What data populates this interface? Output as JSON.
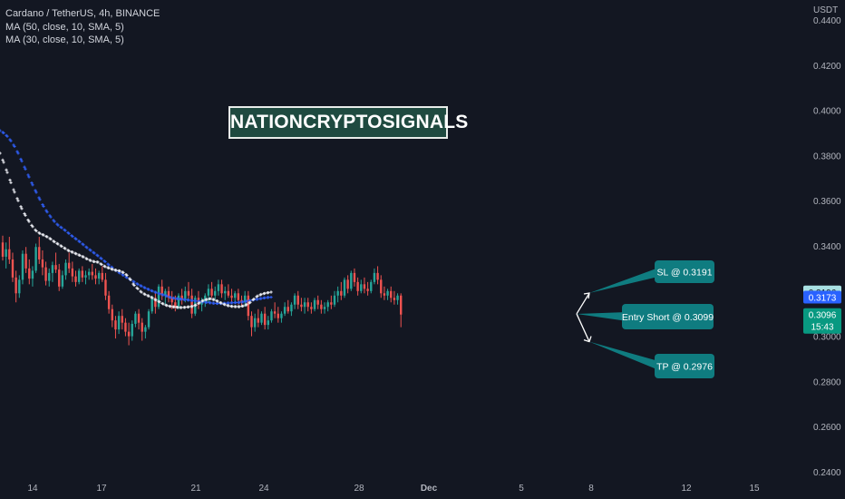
{
  "header": {
    "symbol_line": "Cardano / TetherUS, 4h, BINANCE",
    "indicators": [
      "MA (50, close, 10, SMA, 5)",
      "MA (30, close, 10, SMA, 5)"
    ],
    "unit": "USDT"
  },
  "watermark": "NATIONCRYPTOSIGNALS",
  "chart_data": {
    "type": "candlestick",
    "ylim": [
      0.24,
      0.446
    ],
    "y_ticks": [
      "0.4400",
      "0.4200",
      "0.4000",
      "0.3800",
      "0.3600",
      "0.3400",
      "0.3000",
      "0.2800",
      "0.2600",
      "0.2400"
    ],
    "x_ticks": [
      "14",
      "17",
      "21",
      "24",
      "28",
      "Dec",
      "5",
      "8",
      "12",
      "15"
    ],
    "price_tags": [
      {
        "label": "0.3196",
        "value": 0.3196,
        "bg": "#a8e0e3",
        "fg": "#131722"
      },
      {
        "label": "0.3173",
        "value": 0.3173,
        "bg": "#2962ff",
        "fg": "#ffffff"
      },
      {
        "label": "0.3096",
        "sub": "15:43",
        "value": 0.3096,
        "bg": "#089981",
        "fg": "#ffffff"
      }
    ],
    "candles": [
      [
        0.3415,
        0.3445,
        0.3335,
        0.3352
      ],
      [
        0.3352,
        0.3415,
        0.33,
        0.3385
      ],
      [
        0.3385,
        0.344,
        0.332,
        0.334
      ],
      [
        0.334,
        0.337,
        0.324,
        0.326
      ],
      [
        0.326,
        0.329,
        0.315,
        0.319
      ],
      [
        0.319,
        0.327,
        0.317,
        0.325
      ],
      [
        0.325,
        0.338,
        0.323,
        0.3365
      ],
      [
        0.3365,
        0.3395,
        0.328,
        0.33
      ],
      [
        0.33,
        0.334,
        0.323,
        0.3255
      ],
      [
        0.3255,
        0.331,
        0.322,
        0.329
      ],
      [
        0.329,
        0.341,
        0.328,
        0.3395
      ],
      [
        0.3395,
        0.344,
        0.332,
        0.334
      ],
      [
        0.334,
        0.338,
        0.327,
        0.3305
      ],
      [
        0.3305,
        0.333,
        0.3225,
        0.3245
      ],
      [
        0.3245,
        0.33,
        0.322,
        0.328
      ],
      [
        0.328,
        0.333,
        0.324,
        0.3315
      ],
      [
        0.3315,
        0.337,
        0.328,
        0.3295
      ],
      [
        0.3295,
        0.332,
        0.32,
        0.322
      ],
      [
        0.322,
        0.329,
        0.321,
        0.327
      ],
      [
        0.327,
        0.334,
        0.325,
        0.3325
      ],
      [
        0.3325,
        0.337,
        0.328,
        0.33
      ],
      [
        0.33,
        0.333,
        0.324,
        0.3265
      ],
      [
        0.3265,
        0.329,
        0.322,
        0.324
      ],
      [
        0.324,
        0.33,
        0.323,
        0.329
      ],
      [
        0.329,
        0.331,
        0.324,
        0.326
      ],
      [
        0.326,
        0.329,
        0.323,
        0.327
      ],
      [
        0.327,
        0.33,
        0.325,
        0.3285
      ],
      [
        0.3285,
        0.332,
        0.325,
        0.327
      ],
      [
        0.327,
        0.33,
        0.323,
        0.3255
      ],
      [
        0.3255,
        0.329,
        0.323,
        0.328
      ],
      [
        0.328,
        0.331,
        0.324,
        0.325
      ],
      [
        0.325,
        0.328,
        0.316,
        0.318
      ],
      [
        0.318,
        0.32,
        0.31,
        0.312
      ],
      [
        0.312,
        0.314,
        0.304,
        0.307
      ],
      [
        0.307,
        0.309,
        0.299,
        0.303
      ],
      [
        0.303,
        0.311,
        0.301,
        0.309
      ],
      [
        0.309,
        0.312,
        0.303,
        0.306
      ],
      [
        0.306,
        0.308,
        0.3,
        0.302
      ],
      [
        0.302,
        0.306,
        0.296,
        0.3
      ],
      [
        0.3,
        0.307,
        0.298,
        0.3055
      ],
      [
        0.3055,
        0.311,
        0.304,
        0.31
      ],
      [
        0.31,
        0.312,
        0.303,
        0.306
      ],
      [
        0.306,
        0.308,
        0.298,
        0.302
      ],
      [
        0.302,
        0.305,
        0.299,
        0.304
      ],
      [
        0.304,
        0.312,
        0.303,
        0.311
      ],
      [
        0.311,
        0.318,
        0.31,
        0.317
      ],
      [
        0.317,
        0.319,
        0.31,
        0.313
      ],
      [
        0.313,
        0.323,
        0.312,
        0.322
      ],
      [
        0.322,
        0.325,
        0.316,
        0.318
      ],
      [
        0.318,
        0.321,
        0.314,
        0.32
      ],
      [
        0.32,
        0.322,
        0.315,
        0.317
      ],
      [
        0.317,
        0.32,
        0.312,
        0.315
      ],
      [
        0.315,
        0.318,
        0.311,
        0.313
      ],
      [
        0.313,
        0.319,
        0.312,
        0.318
      ],
      [
        0.318,
        0.321,
        0.314,
        0.316
      ],
      [
        0.316,
        0.322,
        0.315,
        0.32
      ],
      [
        0.32,
        0.324,
        0.316,
        0.318
      ],
      [
        0.318,
        0.321,
        0.308,
        0.31
      ],
      [
        0.31,
        0.318,
        0.309,
        0.317
      ],
      [
        0.317,
        0.32,
        0.312,
        0.314
      ],
      [
        0.314,
        0.317,
        0.311,
        0.315
      ],
      [
        0.315,
        0.319,
        0.313,
        0.318
      ],
      [
        0.318,
        0.323,
        0.315,
        0.321
      ],
      [
        0.321,
        0.324,
        0.317,
        0.318
      ],
      [
        0.318,
        0.322,
        0.316,
        0.32
      ],
      [
        0.32,
        0.325,
        0.318,
        0.323
      ],
      [
        0.323,
        0.325,
        0.317,
        0.319
      ],
      [
        0.319,
        0.322,
        0.316,
        0.32
      ],
      [
        0.32,
        0.323,
        0.317,
        0.318
      ],
      [
        0.318,
        0.321,
        0.315,
        0.317
      ],
      [
        0.317,
        0.32,
        0.315,
        0.319
      ],
      [
        0.319,
        0.321,
        0.314,
        0.316
      ],
      [
        0.316,
        0.318,
        0.313,
        0.315
      ],
      [
        0.315,
        0.32,
        0.313,
        0.318
      ],
      [
        0.318,
        0.32,
        0.307,
        0.309
      ],
      [
        0.309,
        0.311,
        0.3,
        0.304
      ],
      [
        0.304,
        0.31,
        0.302,
        0.308
      ],
      [
        0.308,
        0.312,
        0.304,
        0.306
      ],
      [
        0.306,
        0.311,
        0.305,
        0.31
      ],
      [
        0.31,
        0.313,
        0.303,
        0.305
      ],
      [
        0.305,
        0.309,
        0.303,
        0.307
      ],
      [
        0.307,
        0.312,
        0.306,
        0.311
      ],
      [
        0.311,
        0.315,
        0.308,
        0.31
      ],
      [
        0.31,
        0.313,
        0.306,
        0.308
      ],
      [
        0.308,
        0.311,
        0.306,
        0.31
      ],
      [
        0.31,
        0.315,
        0.309,
        0.313
      ],
      [
        0.313,
        0.316,
        0.31,
        0.311
      ],
      [
        0.311,
        0.315,
        0.309,
        0.314
      ],
      [
        0.314,
        0.319,
        0.312,
        0.318
      ],
      [
        0.318,
        0.32,
        0.312,
        0.314
      ],
      [
        0.314,
        0.317,
        0.311,
        0.313
      ],
      [
        0.313,
        0.317,
        0.31,
        0.315
      ],
      [
        0.315,
        0.317,
        0.311,
        0.313
      ],
      [
        0.313,
        0.315,
        0.31,
        0.312
      ],
      [
        0.312,
        0.317,
        0.311,
        0.316
      ],
      [
        0.316,
        0.318,
        0.312,
        0.314
      ],
      [
        0.314,
        0.316,
        0.31,
        0.312
      ],
      [
        0.312,
        0.315,
        0.31,
        0.313
      ],
      [
        0.313,
        0.316,
        0.311,
        0.315
      ],
      [
        0.315,
        0.318,
        0.312,
        0.314
      ],
      [
        0.314,
        0.32,
        0.313,
        0.318
      ],
      [
        0.318,
        0.322,
        0.315,
        0.32
      ],
      [
        0.32,
        0.324,
        0.316,
        0.318
      ],
      [
        0.318,
        0.326,
        0.317,
        0.325
      ],
      [
        0.325,
        0.327,
        0.319,
        0.321
      ],
      [
        0.321,
        0.329,
        0.32,
        0.328
      ],
      [
        0.328,
        0.33,
        0.322,
        0.324
      ],
      [
        0.324,
        0.326,
        0.318,
        0.32
      ],
      [
        0.32,
        0.325,
        0.319,
        0.323
      ],
      [
        0.323,
        0.326,
        0.319,
        0.321
      ],
      [
        0.321,
        0.324,
        0.318,
        0.32
      ],
      [
        0.32,
        0.325,
        0.319,
        0.324
      ],
      [
        0.324,
        0.33,
        0.323,
        0.328
      ],
      [
        0.328,
        0.331,
        0.323,
        0.325
      ],
      [
        0.325,
        0.327,
        0.317,
        0.319
      ],
      [
        0.319,
        0.322,
        0.316,
        0.318
      ],
      [
        0.318,
        0.321,
        0.316,
        0.32
      ],
      [
        0.32,
        0.322,
        0.315,
        0.317
      ],
      [
        0.317,
        0.32,
        0.314,
        0.316
      ],
      [
        0.316,
        0.319,
        0.314,
        0.318
      ],
      [
        0.318,
        0.319,
        0.304,
        0.3096
      ]
    ],
    "ma_white": [
      [
        0,
        0.381
      ],
      [
        4,
        0.377
      ],
      [
        8,
        0.3725
      ],
      [
        12,
        0.368
      ],
      [
        16,
        0.3638
      ],
      [
        20,
        0.36
      ],
      [
        24,
        0.3565
      ],
      [
        28,
        0.3535
      ],
      [
        32,
        0.3508
      ],
      [
        36,
        0.3485
      ],
      [
        40,
        0.3466
      ],
      [
        44,
        0.3455
      ],
      [
        48,
        0.3448
      ],
      [
        52,
        0.344
      ],
      [
        56,
        0.343
      ],
      [
        60,
        0.3418
      ],
      [
        64,
        0.3408
      ],
      [
        68,
        0.3398
      ],
      [
        72,
        0.3388
      ],
      [
        76,
        0.3378
      ],
      [
        80,
        0.3372
      ],
      [
        84,
        0.3365
      ],
      [
        88,
        0.3358
      ],
      [
        92,
        0.3351
      ],
      [
        96,
        0.3342
      ],
      [
        100,
        0.3335
      ],
      [
        104,
        0.333
      ],
      [
        108,
        0.3328
      ],
      [
        112,
        0.3318
      ],
      [
        116,
        0.3308
      ],
      [
        120,
        0.3302
      ],
      [
        124,
        0.3296
      ],
      [
        128,
        0.3292
      ],
      [
        132,
        0.3289
      ],
      [
        136,
        0.3282
      ],
      [
        140,
        0.327
      ],
      [
        144,
        0.325
      ],
      [
        148,
        0.3225
      ],
      [
        152,
        0.321
      ],
      [
        156,
        0.3195
      ],
      [
        160,
        0.3185
      ],
      [
        164,
        0.3178
      ],
      [
        168,
        0.317
      ],
      [
        172,
        0.316
      ],
      [
        176,
        0.3152
      ],
      [
        180,
        0.3143
      ],
      [
        184,
        0.3136
      ],
      [
        188,
        0.3132
      ],
      [
        192,
        0.313
      ],
      [
        196,
        0.3128
      ],
      [
        200,
        0.3127
      ],
      [
        204,
        0.3128
      ],
      [
        208,
        0.313
      ],
      [
        212,
        0.3132
      ],
      [
        216,
        0.3138
      ],
      [
        220,
        0.3148
      ],
      [
        224,
        0.3158
      ],
      [
        228,
        0.3163
      ],
      [
        232,
        0.3166
      ],
      [
        236,
        0.3162
      ],
      [
        240,
        0.3155
      ],
      [
        244,
        0.3147
      ],
      [
        248,
        0.314
      ],
      [
        252,
        0.3135
      ],
      [
        256,
        0.3132
      ],
      [
        260,
        0.3131
      ],
      [
        264,
        0.3131
      ],
      [
        268,
        0.3134
      ],
      [
        272,
        0.314
      ],
      [
        276,
        0.315
      ],
      [
        280,
        0.3165
      ],
      [
        284,
        0.3178
      ],
      [
        288,
        0.3185
      ],
      [
        292,
        0.319
      ],
      [
        296,
        0.3193
      ],
      [
        300,
        0.3196
      ]
    ],
    "ma_blue": [
      [
        0,
        0.391
      ],
      [
        4,
        0.39
      ],
      [
        8,
        0.3885
      ],
      [
        12,
        0.3865
      ],
      [
        16,
        0.384
      ],
      [
        20,
        0.381
      ],
      [
        24,
        0.3775
      ],
      [
        28,
        0.374
      ],
      [
        32,
        0.3705
      ],
      [
        36,
        0.367
      ],
      [
        40,
        0.3637
      ],
      [
        44,
        0.3605
      ],
      [
        48,
        0.3575
      ],
      [
        52,
        0.355
      ],
      [
        56,
        0.3528
      ],
      [
        60,
        0.3508
      ],
      [
        64,
        0.3492
      ],
      [
        68,
        0.348
      ],
      [
        72,
        0.3468
      ],
      [
        76,
        0.3455
      ],
      [
        80,
        0.3442
      ],
      [
        84,
        0.343
      ],
      [
        88,
        0.3418
      ],
      [
        92,
        0.3405
      ],
      [
        96,
        0.3392
      ],
      [
        100,
        0.338
      ],
      [
        104,
        0.3368
      ],
      [
        108,
        0.3356
      ],
      [
        112,
        0.3343
      ],
      [
        116,
        0.333
      ],
      [
        120,
        0.3316
      ],
      [
        124,
        0.3303
      ],
      [
        128,
        0.329
      ],
      [
        132,
        0.328
      ],
      [
        136,
        0.327
      ],
      [
        140,
        0.326
      ],
      [
        144,
        0.325
      ],
      [
        148,
        0.324
      ],
      [
        152,
        0.323
      ],
      [
        156,
        0.3222
      ],
      [
        160,
        0.3214
      ],
      [
        164,
        0.3207
      ],
      [
        168,
        0.32
      ],
      [
        172,
        0.3194
      ],
      [
        176,
        0.3188
      ],
      [
        180,
        0.3183
      ],
      [
        184,
        0.3178
      ],
      [
        188,
        0.3172
      ],
      [
        192,
        0.3168
      ],
      [
        196,
        0.3166
      ],
      [
        200,
        0.3164
      ],
      [
        204,
        0.3162
      ],
      [
        208,
        0.316
      ],
      [
        212,
        0.3158
      ],
      [
        216,
        0.3156
      ],
      [
        220,
        0.3154
      ],
      [
        224,
        0.3152
      ],
      [
        228,
        0.315
      ],
      [
        232,
        0.3148
      ],
      [
        236,
        0.3146
      ],
      [
        240,
        0.3145
      ],
      [
        244,
        0.3145
      ],
      [
        248,
        0.3146
      ],
      [
        252,
        0.3147
      ],
      [
        256,
        0.3148
      ],
      [
        260,
        0.3149
      ],
      [
        264,
        0.315
      ],
      [
        268,
        0.3152
      ],
      [
        272,
        0.3155
      ],
      [
        276,
        0.3158
      ],
      [
        280,
        0.3161
      ],
      [
        284,
        0.3164
      ],
      [
        288,
        0.3167
      ],
      [
        292,
        0.317
      ],
      [
        296,
        0.3172
      ],
      [
        300,
        0.3173
      ]
    ],
    "annotations": [
      {
        "label": "SL @ 0.3191",
        "value": 0.3191
      },
      {
        "label": "Entry Short @ 0.3099",
        "value": 0.3099
      },
      {
        "label": "TP @ 0.2976",
        "value": 0.2976
      }
    ]
  },
  "colors": {
    "background": "#131722",
    "up": "#26a69a",
    "down": "#ef5350",
    "ma_white": "#e8eaf0",
    "ma_blue": "#2e5cf0",
    "callout": "#0f7c80",
    "watermark_bg": "#1f4a40"
  }
}
